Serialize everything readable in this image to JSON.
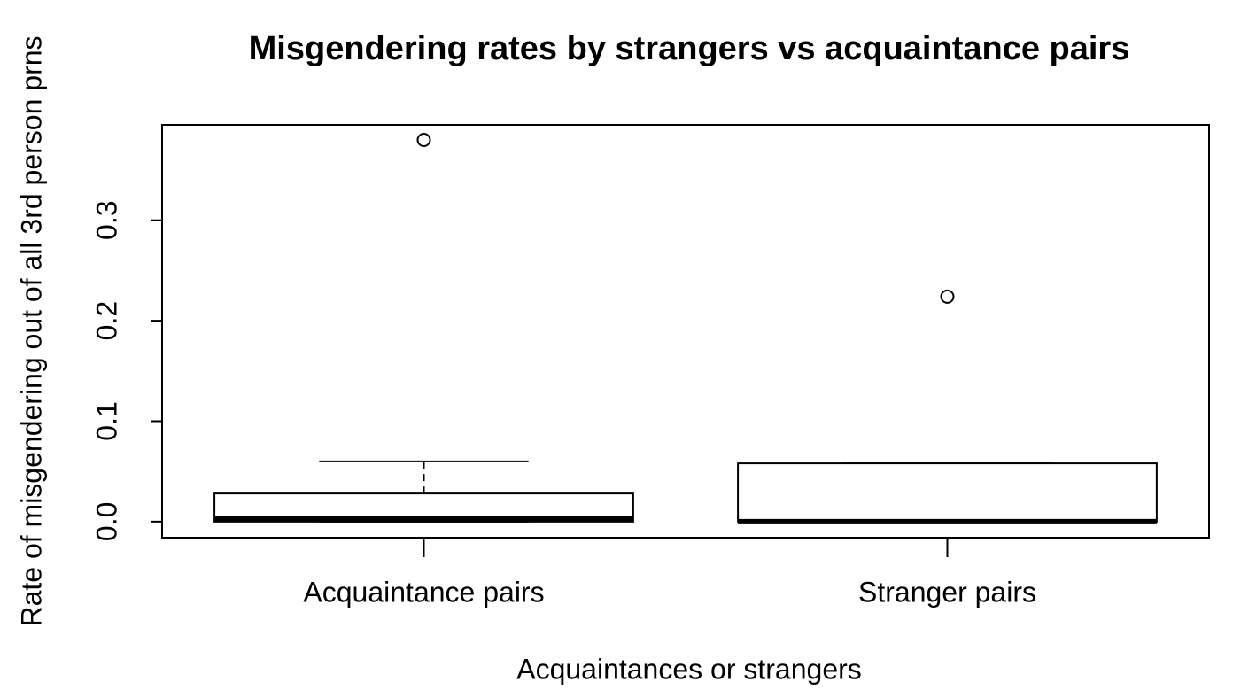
{
  "chart_data": {
    "type": "boxplot",
    "title": "Misgendering rates by strangers vs acquaintance pairs",
    "xlabel": "Acquaintances or strangers",
    "ylabel": "Rate of misgendering out of all 3rd person prns",
    "categories": [
      "Acquaintance pairs",
      "Stranger pairs"
    ],
    "series": [
      {
        "min": 0,
        "q1": 0,
        "median": 0.003,
        "q3": 0.028,
        "max": 0.06,
        "outliers": [
          0.38
        ]
      },
      {
        "min": 0,
        "q1": 0,
        "median": 0,
        "q3": 0.058,
        "max": 0.058,
        "outliers": [
          0.224
        ]
      }
    ],
    "color": "#000000",
    "ylim": [
      -0.016,
      0.395
    ],
    "yticks": [
      {
        "value": 0,
        "label": "0.0"
      },
      0.1,
      0.2,
      0.3
    ]
  }
}
